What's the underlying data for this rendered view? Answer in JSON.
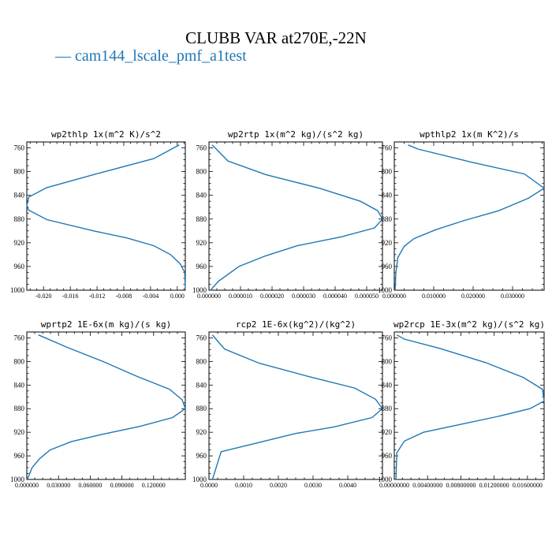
{
  "title": "CLUBB VAR at270E,-22N",
  "legend": {
    "prefix": "—",
    "label": "cam144_lscale_pmf_a1test"
  },
  "colors": {
    "series": "#1f77b4"
  },
  "chart_data": [
    {
      "type": "line",
      "title": "wp2thlp  1x(m^2 K)/s^2",
      "series_name": "cam144_lscale_pmf_a1test",
      "xlim": [
        -0.0225,
        0.0012
      ],
      "ylim": [
        1000,
        750
      ],
      "xticks": [
        -0.02,
        -0.016,
        -0.012,
        -0.008,
        -0.004,
        0
      ],
      "xticklabels": [
        "-0.020",
        "-0.016",
        "-0.012",
        "-0.008",
        "-0.004",
        "0.000"
      ],
      "yticks": [
        760,
        800,
        840,
        880,
        920,
        960,
        1000
      ],
      "yticklabels": [
        "760",
        "800",
        "840",
        "880",
        "920",
        "960",
        "1000"
      ],
      "x": [
        0.0003,
        -0.0035,
        -0.0125,
        -0.0195,
        -0.0222,
        -0.0225,
        -0.0222,
        -0.0195,
        -0.0125,
        -0.0075,
        -0.0035,
        -0.001,
        0.0004,
        0.0011,
        0.0012
      ],
      "y": [
        755,
        778,
        805,
        827,
        843,
        858,
        865,
        881,
        900,
        912,
        925,
        940,
        955,
        970,
        1000
      ]
    },
    {
      "type": "line",
      "title": "wp2rtp  1x(m^2 kg)/(s^2 kg)",
      "series_name": "cam144_lscale_pmf_a1test",
      "xlim": [
        0,
        5.5e-05
      ],
      "ylim": [
        1000,
        750
      ],
      "xticks": [
        0,
        1e-05,
        2e-05,
        3e-05,
        4e-05,
        5e-05
      ],
      "xticklabels": [
        "0.000000",
        "0.000010",
        "0.000020",
        "0.000030",
        "0.000040",
        "0.000050"
      ],
      "yticks": [
        760,
        800,
        840,
        880,
        920,
        960,
        1000
      ],
      "yticklabels": [
        "760",
        "800",
        "840",
        "880",
        "920",
        "960",
        "1000"
      ],
      "x": [
        1e-06,
        2.5e-06,
        6e-06,
        1.8e-05,
        3.5e-05,
        4.8e-05,
        5.35e-05,
        5.5e-05,
        5.25e-05,
        4.2e-05,
        2.8e-05,
        1.8e-05,
        9.5e-06,
        3e-06,
        5e-07
      ],
      "y": [
        755,
        763,
        782,
        805,
        828,
        850,
        866,
        880,
        895,
        910,
        925,
        942,
        960,
        985,
        1000
      ]
    },
    {
      "type": "line",
      "title": "wpthlp2  1x(m K^2)/s",
      "series_name": "cam144_lscale_pmf_a1test",
      "xlim": [
        0,
        0.038
      ],
      "ylim": [
        1000,
        750
      ],
      "xticks": [
        0,
        0.01,
        0.02,
        0.03
      ],
      "xticklabels": [
        "0.000000",
        "0.010000",
        "0.020000",
        "0.030000"
      ],
      "yticks": [
        760,
        800,
        840,
        880,
        920,
        960,
        1000
      ],
      "yticklabels": [
        "760",
        "800",
        "840",
        "880",
        "920",
        "960",
        "1000"
      ],
      "x": [
        0.0035,
        0.006,
        0.0195,
        0.033,
        0.038,
        0.034,
        0.0265,
        0.0175,
        0.0105,
        0.005,
        0.0025,
        0.0009,
        0.0004,
        0.0002
      ],
      "y": [
        755,
        762,
        784,
        804,
        828,
        845,
        866,
        883,
        898,
        913,
        926,
        945,
        970,
        1000
      ]
    },
    {
      "type": "line",
      "title": "wprtp2  1E-6x(m kg)/(s kg)",
      "series_name": "cam144_lscale_pmf_a1test",
      "xlim": [
        0,
        0.15
      ],
      "ylim": [
        1000,
        750
      ],
      "xticks": [
        0,
        0.03,
        0.06,
        0.09,
        0.12
      ],
      "xticklabels": [
        "0.000000",
        "0.030000",
        "0.060000",
        "0.090000",
        "0.120000"
      ],
      "yticks": [
        760,
        800,
        840,
        880,
        920,
        960,
        1000
      ],
      "yticklabels": [
        "760",
        "800",
        "840",
        "880",
        "920",
        "960",
        "1000"
      ],
      "x": [
        0.011,
        0.038,
        0.072,
        0.104,
        0.135,
        0.147,
        0.15,
        0.138,
        0.107,
        0.07,
        0.042,
        0.022,
        0.012,
        0.005,
        0.0005
      ],
      "y": [
        755,
        776,
        800,
        825,
        847,
        865,
        880,
        895,
        910,
        924,
        936,
        950,
        965,
        980,
        1000
      ]
    },
    {
      "type": "line",
      "title": "rcp2  1E-6x(kg^2)/(kg^2)",
      "series_name": "cam144_lscale_pmf_a1test",
      "xlim": [
        0,
        0.005
      ],
      "ylim": [
        1000,
        750
      ],
      "xticks": [
        0,
        0.001,
        0.002,
        0.003,
        0.004
      ],
      "xticklabels": [
        "0.0000",
        "0.0010",
        "0.0020",
        "0.0030",
        "0.0040"
      ],
      "yticks": [
        760,
        800,
        840,
        880,
        920,
        960,
        1000
      ],
      "yticklabels": [
        "760",
        "800",
        "840",
        "880",
        "920",
        "960",
        "1000"
      ],
      "x": [
        0.0001,
        0.0002,
        0.00045,
        0.00145,
        0.0029,
        0.0042,
        0.0048,
        0.005,
        0.0047,
        0.0036,
        0.0025,
        0.0014,
        0.00035,
        0.0001
      ],
      "y": [
        755,
        762,
        779,
        803,
        826,
        845,
        864,
        880,
        895,
        911,
        922,
        938,
        953,
        1000
      ]
    },
    {
      "type": "line",
      "title": "wp2rcp  1E-3x(m^2 kg)/(s^2 kg)",
      "series_name": "cam144_lscale_pmf_a1test",
      "xlim": [
        0,
        0.018
      ],
      "ylim": [
        1000,
        750
      ],
      "xticks": [
        0,
        0.004,
        0.008,
        0.012,
        0.016
      ],
      "xticklabels": [
        "0.00000000",
        "0.00400000",
        "0.00800000",
        "0.01200000",
        "0.01600000"
      ],
      "yticks": [
        760,
        800,
        840,
        880,
        920,
        960,
        1000
      ],
      "yticklabels": [
        "760",
        "800",
        "840",
        "880",
        "920",
        "960",
        "1000"
      ],
      "x": [
        0.0003,
        0.0012,
        0.0055,
        0.011,
        0.0155,
        0.0178,
        0.018,
        0.0163,
        0.0125,
        0.0075,
        0.0035,
        0.0012,
        0.0003,
        0.0002
      ],
      "y": [
        755,
        762,
        778,
        802,
        827,
        847,
        867,
        880,
        893,
        908,
        920,
        935,
        955,
        1000
      ]
    }
  ]
}
